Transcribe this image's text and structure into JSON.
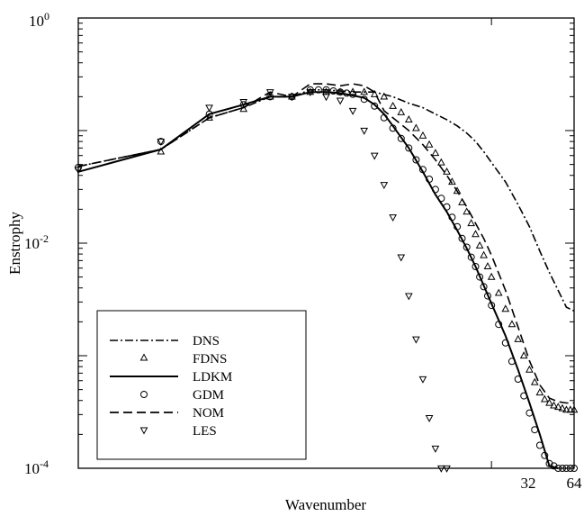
{
  "chart_data": {
    "type": "line",
    "xlabel": "Wavenumber",
    "ylabel": "Enstrophy",
    "xscale": "log2",
    "yscale": "log10",
    "xlim": [
      1,
      64
    ],
    "ylim": [
      0.0001,
      1
    ],
    "grid": false,
    "legend_position": "bottom-left",
    "x_tick_labels": [
      {
        "value": 32,
        "label": "32"
      },
      {
        "value": 64,
        "label": "64"
      }
    ],
    "y_tick_labels": [
      {
        "value": 1,
        "base": "10",
        "exp": "0"
      },
      {
        "value": 0.01,
        "base": "10",
        "exp": "-2"
      },
      {
        "value": 0.0001,
        "base": "10",
        "exp": "-4"
      }
    ],
    "series": [
      {
        "name": "DNS",
        "style": "dashdot",
        "x": [
          1,
          2,
          3,
          4,
          5,
          6,
          7,
          8,
          10,
          12,
          14,
          16,
          18,
          20,
          22,
          24,
          26,
          28,
          30,
          32,
          36,
          40,
          44,
          48,
          52,
          56,
          60,
          64
        ],
        "y": [
          0.048,
          0.068,
          0.13,
          0.16,
          0.2,
          0.2,
          0.23,
          0.23,
          0.22,
          0.22,
          0.2,
          0.175,
          0.16,
          0.14,
          0.125,
          0.11,
          0.095,
          0.08,
          0.065,
          0.052,
          0.035,
          0.022,
          0.014,
          0.0085,
          0.0055,
          0.0038,
          0.0027,
          0.0025
        ]
      },
      {
        "name": "FDNS",
        "style": "marker-triangle-up",
        "x": [
          2,
          3,
          4,
          5,
          6,
          7,
          8,
          9,
          10,
          11,
          12,
          13,
          14,
          15,
          16,
          17,
          18,
          19,
          20,
          21,
          22,
          23,
          24,
          25,
          26,
          27,
          28,
          29,
          30,
          31,
          32,
          34,
          36,
          38,
          40,
          42,
          44,
          46,
          48,
          50,
          52,
          54,
          56,
          58,
          60,
          62,
          64
        ],
        "y": [
          0.065,
          0.13,
          0.155,
          0.2,
          0.2,
          0.22,
          0.22,
          0.22,
          0.22,
          0.22,
          0.21,
          0.2,
          0.165,
          0.145,
          0.125,
          0.105,
          0.09,
          0.075,
          0.063,
          0.052,
          0.043,
          0.035,
          0.029,
          0.023,
          0.019,
          0.015,
          0.012,
          0.0095,
          0.0078,
          0.0062,
          0.005,
          0.0036,
          0.0026,
          0.0019,
          0.0014,
          0.001,
          0.00075,
          0.00058,
          0.00047,
          0.00041,
          0.00038,
          0.00036,
          0.00035,
          0.00034,
          0.00033,
          0.00033,
          0.00033
        ]
      },
      {
        "name": "LDKM",
        "style": "solid",
        "x": [
          1,
          2,
          3,
          4,
          5,
          6,
          7,
          8,
          9,
          10,
          11,
          12,
          13,
          14,
          16,
          18,
          20,
          22,
          24,
          26,
          28,
          30,
          32,
          36,
          40,
          44,
          48,
          52,
          56
        ],
        "y": [
          0.043,
          0.068,
          0.14,
          0.17,
          0.2,
          0.2,
          0.22,
          0.22,
          0.215,
          0.205,
          0.195,
          0.17,
          0.14,
          0.11,
          0.07,
          0.043,
          0.027,
          0.019,
          0.013,
          0.009,
          0.0062,
          0.0042,
          0.0029,
          0.0015,
          0.00075,
          0.00038,
          0.0002,
          0.000105,
          0.0001
        ]
      },
      {
        "name": "GDM",
        "style": "marker-circle",
        "x": [
          1,
          2,
          3,
          4,
          5,
          6,
          7,
          7.5,
          8,
          8.5,
          9,
          9.5,
          10,
          11,
          12,
          13,
          14,
          15,
          16,
          17,
          18,
          19,
          20,
          21,
          22,
          23,
          24,
          25,
          26,
          27,
          28,
          29,
          30,
          31,
          32,
          34,
          36,
          38,
          40,
          42,
          44,
          46,
          48,
          50,
          52,
          54,
          56,
          58,
          60,
          62,
          64
        ],
        "y": [
          0.047,
          0.08,
          0.14,
          0.17,
          0.2,
          0.2,
          0.23,
          0.23,
          0.23,
          0.225,
          0.22,
          0.215,
          0.21,
          0.19,
          0.165,
          0.13,
          0.105,
          0.085,
          0.07,
          0.055,
          0.045,
          0.037,
          0.03,
          0.025,
          0.021,
          0.017,
          0.014,
          0.011,
          0.0092,
          0.0075,
          0.0062,
          0.005,
          0.0041,
          0.0034,
          0.0028,
          0.0019,
          0.0013,
          0.00089,
          0.00062,
          0.00044,
          0.00031,
          0.00022,
          0.00016,
          0.00013,
          0.00011,
          0.000105,
          0.0001,
          0.0001,
          0.0001,
          0.0001,
          0.0001
        ]
      },
      {
        "name": "NOM",
        "style": "dashed",
        "x": [
          1,
          2,
          3,
          4,
          5,
          6,
          7,
          8,
          9,
          10,
          11,
          12,
          13,
          14,
          16,
          18,
          20,
          22,
          24,
          26,
          28,
          30,
          32,
          36,
          40,
          44,
          48,
          52,
          56,
          60,
          64
        ],
        "y": [
          0.048,
          0.068,
          0.13,
          0.16,
          0.22,
          0.2,
          0.26,
          0.26,
          0.25,
          0.26,
          0.25,
          0.22,
          0.15,
          0.13,
          0.1,
          0.075,
          0.055,
          0.04,
          0.029,
          0.021,
          0.015,
          0.011,
          0.0078,
          0.0038,
          0.0018,
          0.0009,
          0.00055,
          0.00042,
          0.00039,
          0.00038,
          0.00038
        ]
      },
      {
        "name": "LES",
        "style": "marker-triangle-down",
        "x": [
          1,
          2,
          3,
          4,
          5,
          6,
          7,
          8,
          9,
          10,
          11,
          12,
          13,
          14,
          15,
          16,
          17,
          18,
          19,
          20,
          21,
          22
        ],
        "y": [
          0.045,
          0.08,
          0.16,
          0.18,
          0.22,
          0.2,
          0.22,
          0.2,
          0.185,
          0.15,
          0.1,
          0.06,
          0.033,
          0.017,
          0.0075,
          0.0034,
          0.0014,
          0.00062,
          0.00028,
          0.00015,
          0.0001,
          0.0001
        ]
      }
    ]
  }
}
